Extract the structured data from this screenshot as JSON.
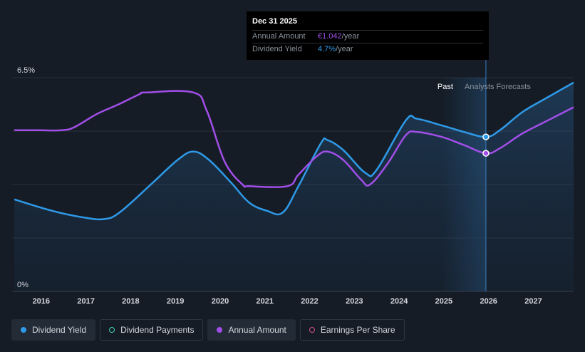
{
  "tooltip": {
    "date": "Dec 31 2025",
    "annual_label": "Annual Amount",
    "annual_value": "€1.042",
    "annual_unit": "/year",
    "yield_label": "Dividend Yield",
    "yield_value": "4.7%",
    "yield_unit": "/year"
  },
  "colors": {
    "yield": "#2f9ae8",
    "annual": "#a24ee8",
    "payments": "#3fd1b8",
    "eps": "#d04f8c",
    "background": "#151c26",
    "grid": "#2a313c"
  },
  "legend": [
    {
      "label": "Dividend Yield",
      "color": "#2f9ae8",
      "filled": true,
      "active": true
    },
    {
      "label": "Dividend Payments",
      "color": "#3fd1b8",
      "filled": false,
      "active": false
    },
    {
      "label": "Annual Amount",
      "color": "#a24ee8",
      "filled": true,
      "active": true
    },
    {
      "label": "Earnings Per Share",
      "color": "#d04f8c",
      "filled": false,
      "active": false
    }
  ],
  "chart_data": {
    "type": "line",
    "ylim": [
      0,
      6.5
    ],
    "y_ticks": [
      {
        "value": 0,
        "label": "0%"
      },
      {
        "value": 6.5,
        "label": "6.5%"
      }
    ],
    "xlim": [
      2015.4,
      2027.95
    ],
    "x_ticks": [
      "2016",
      "2017",
      "2018",
      "2019",
      "2020",
      "2021",
      "2022",
      "2023",
      "2024",
      "2025",
      "2026",
      "2027"
    ],
    "past_label": "Past",
    "forecast_label": "Analysts Forecasts",
    "forecast_start": 2025.99,
    "highlight_x": 2025.99,
    "series": [
      {
        "name": "Dividend Yield",
        "key": "yield",
        "points": [
          [
            2015.45,
            2.8
          ],
          [
            2016.3,
            2.45
          ],
          [
            2017.0,
            2.25
          ],
          [
            2017.45,
            2.2
          ],
          [
            2017.8,
            2.4
          ],
          [
            2018.5,
            3.25
          ],
          [
            2019.1,
            4.0
          ],
          [
            2019.45,
            4.25
          ],
          [
            2019.8,
            4.0
          ],
          [
            2020.3,
            3.3
          ],
          [
            2020.7,
            2.7
          ],
          [
            2021.1,
            2.45
          ],
          [
            2021.45,
            2.4
          ],
          [
            2021.8,
            3.2
          ],
          [
            2022.3,
            4.5
          ],
          [
            2022.45,
            4.6
          ],
          [
            2022.8,
            4.3
          ],
          [
            2023.3,
            3.6
          ],
          [
            2023.55,
            3.7
          ],
          [
            2024.2,
            5.2
          ],
          [
            2024.45,
            5.25
          ],
          [
            2025.0,
            5.05
          ],
          [
            2025.5,
            4.85
          ],
          [
            2025.99,
            4.7
          ],
          [
            2026.3,
            4.9
          ],
          [
            2026.8,
            5.45
          ],
          [
            2027.3,
            5.85
          ],
          [
            2027.95,
            6.35
          ]
        ]
      },
      {
        "name": "Annual Amount",
        "key": "annual",
        "points": [
          [
            2015.45,
            4.9
          ],
          [
            2016.0,
            4.9
          ],
          [
            2016.5,
            4.9
          ],
          [
            2016.8,
            5.0
          ],
          [
            2017.3,
            5.4
          ],
          [
            2017.8,
            5.7
          ],
          [
            2018.25,
            6.0
          ],
          [
            2018.4,
            6.05
          ],
          [
            2019.45,
            6.05
          ],
          [
            2019.75,
            5.5
          ],
          [
            2020.15,
            3.95
          ],
          [
            2020.55,
            3.25
          ],
          [
            2020.7,
            3.2
          ],
          [
            2021.55,
            3.2
          ],
          [
            2021.8,
            3.55
          ],
          [
            2022.2,
            4.1
          ],
          [
            2022.45,
            4.25
          ],
          [
            2022.8,
            4.0
          ],
          [
            2023.2,
            3.4
          ],
          [
            2023.4,
            3.25
          ],
          [
            2023.8,
            3.9
          ],
          [
            2024.2,
            4.75
          ],
          [
            2024.45,
            4.85
          ],
          [
            2025.0,
            4.7
          ],
          [
            2025.5,
            4.45
          ],
          [
            2025.99,
            4.2
          ],
          [
            2026.3,
            4.35
          ],
          [
            2026.8,
            4.8
          ],
          [
            2027.3,
            5.15
          ],
          [
            2027.95,
            5.6
          ]
        ]
      }
    ]
  }
}
